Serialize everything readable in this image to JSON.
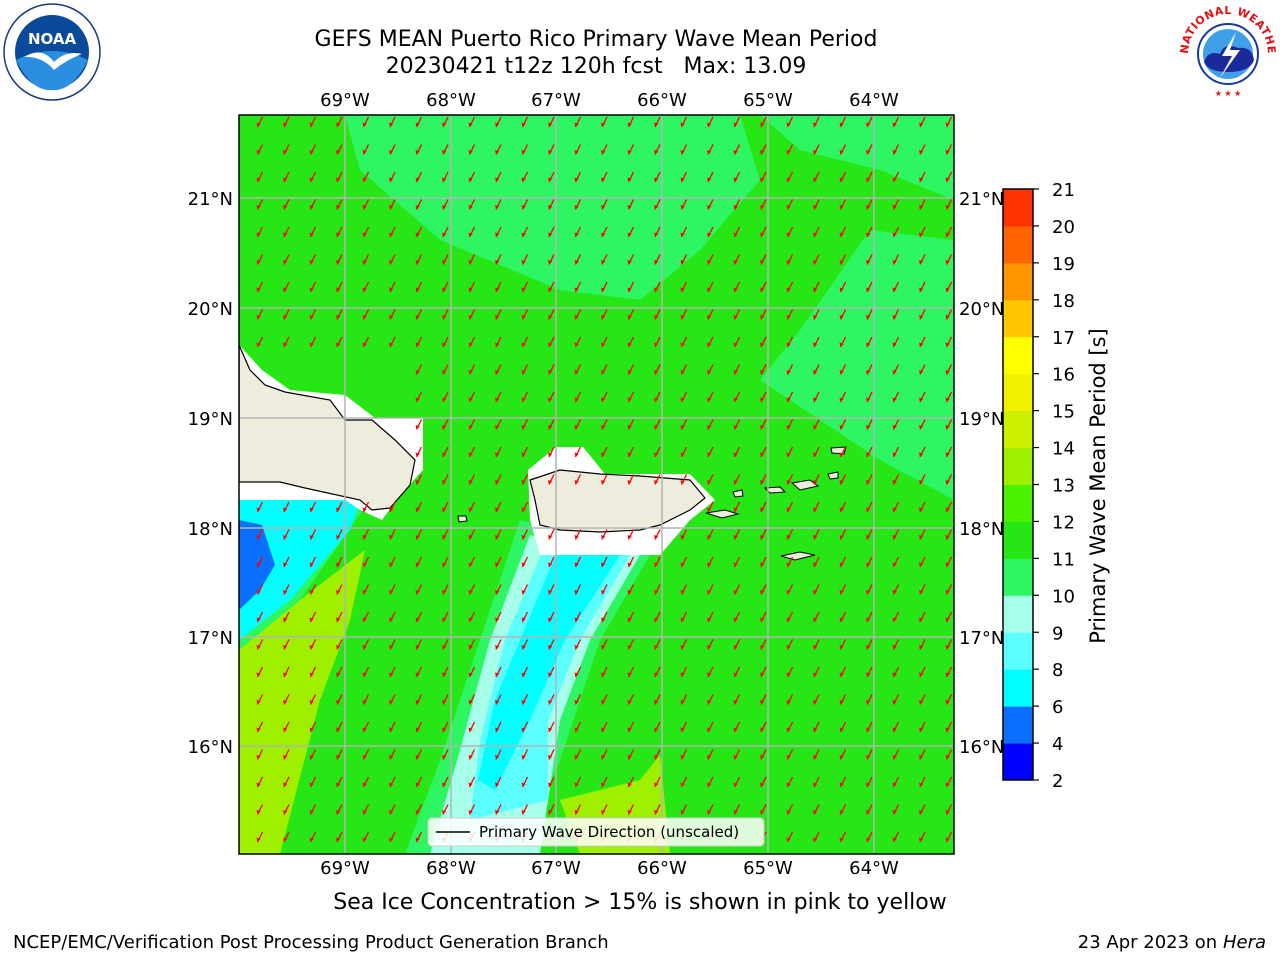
{
  "title_line1": "GEFS MEAN Puerto Rico Primary Wave Mean Period",
  "title_line2": "20230421 t12z 120h fcst   Max: 13.09",
  "lon_labels": [
    "69°W",
    "68°W",
    "67°W",
    "66°W",
    "65°W",
    "64°W"
  ],
  "lat_labels": [
    "21°N",
    "20°N",
    "19°N",
    "18°N",
    "17°N",
    "16°N"
  ],
  "legend_label": "Primary Wave Direction (unscaled)",
  "colorbar": {
    "title": "Primary Wave Mean Period [s]",
    "ticks": [
      "2",
      "4",
      "6",
      "8",
      "9",
      "10",
      "11",
      "12",
      "13",
      "14",
      "15",
      "16",
      "17",
      "18",
      "19",
      "20",
      "21"
    ],
    "colors": [
      "#0000ff",
      "#0a6eff",
      "#00ffff",
      "#5cffff",
      "#a6ffe9",
      "#2ef562",
      "#27e615",
      "#49f000",
      "#9ef000",
      "#cdf000",
      "#f0f000",
      "#ffff00",
      "#ffc800",
      "#ff9600",
      "#ff6400",
      "#ff3200",
      "#ff0000"
    ]
  },
  "colors": {
    "land": "#eeecdc",
    "grid": "#b4b4b4",
    "arrow": "#ff0000",
    "sea_main": "#27e615",
    "sea_light": "#2ef562"
  },
  "subtitle": "Sea Ice Concentration > 15% is shown in pink to yellow",
  "footer_left": "NCEP/EMC/Verification Post Processing Product Generation Branch",
  "footer_date": "23 Apr 2023 on ",
  "footer_machine": "Hera",
  "logos": {
    "noaa_text": "NOAA",
    "nws_text": "NATIONAL WEATHER SERVICE"
  }
}
